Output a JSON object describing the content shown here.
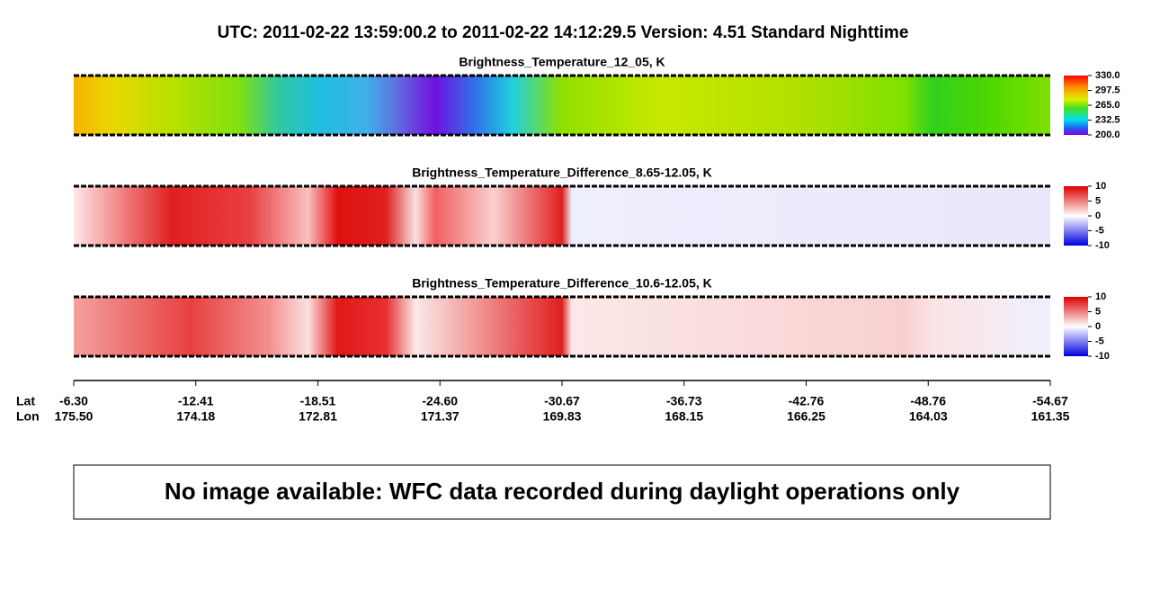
{
  "header": {
    "title": "UTC:  2011-02-22   13:59:00.2  to  2011-02-22   14:12:29.5    Version: 4.51  Standard Nighttime"
  },
  "panels": [
    {
      "title": "Brightness_Temperature_12_05, K",
      "colorbar_ticks": [
        "330.0",
        "297.5",
        "265.0",
        "232.5",
        "200.0"
      ]
    },
    {
      "title": "Brightness_Temperature_Difference_8.65-12.05, K",
      "colorbar_ticks": [
        "10",
        "5",
        "0",
        "-5",
        "-10"
      ]
    },
    {
      "title": "Brightness_Temperature_Difference_10.6-12.05, K",
      "colorbar_ticks": [
        "10",
        "5",
        "0",
        "-5",
        "-10"
      ]
    }
  ],
  "axis": {
    "row_labels": [
      "Lat",
      "Lon"
    ],
    "lat": [
      "-6.30",
      "-12.41",
      "-18.51",
      "-24.60",
      "-30.67",
      "-36.73",
      "-42.76",
      "-48.76",
      "-54.67"
    ],
    "lon": [
      "175.50",
      "174.18",
      "172.81",
      "171.37",
      "169.83",
      "168.15",
      "166.25",
      "164.03",
      "161.35"
    ]
  },
  "message": "No image available: WFC data recorded during daylight operations only"
}
